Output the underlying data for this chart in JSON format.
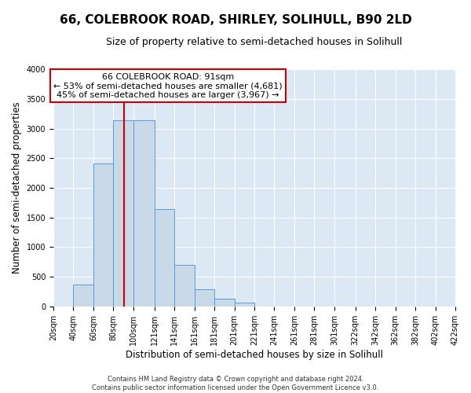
{
  "title": "66, COLEBROOK ROAD, SHIRLEY, SOLIHULL, B90 2LD",
  "subtitle": "Size of property relative to semi-detached houses in Solihull",
  "xlabel": "Distribution of semi-detached houses by size in Solihull",
  "ylabel": "Number of semi-detached properties",
  "footnote1": "Contains HM Land Registry data © Crown copyright and database right 2024.",
  "footnote2": "Contains public sector information licensed under the Open Government Licence v3.0.",
  "bar_left_edges": [
    20,
    40,
    60,
    80,
    100,
    121,
    141,
    161,
    181,
    201,
    221,
    241,
    261,
    281,
    301,
    322,
    342,
    362,
    382,
    402
  ],
  "bar_widths": [
    20,
    20,
    20,
    20,
    21,
    20,
    20,
    20,
    20,
    20,
    20,
    20,
    20,
    20,
    21,
    20,
    20,
    20,
    20,
    20
  ],
  "bar_heights": [
    0,
    375,
    2415,
    3145,
    3145,
    1640,
    700,
    295,
    130,
    60,
    0,
    0,
    0,
    0,
    0,
    0,
    0,
    0,
    0,
    0
  ],
  "bar_color": "#c9d9e8",
  "bar_edge_color": "#5b9bd5",
  "property_value": 91,
  "vline_color": "#cc0000",
  "annotation_title": "66 COLEBROOK ROAD: 91sqm",
  "annotation_line1": "← 53% of semi-detached houses are smaller (4,681)",
  "annotation_line2": "45% of semi-detached houses are larger (3,967) →",
  "annotation_box_color": "#ffffff",
  "annotation_box_edge_color": "#cc0000",
  "xlim": [
    20,
    422
  ],
  "ylim": [
    0,
    4000
  ],
  "yticks": [
    0,
    500,
    1000,
    1500,
    2000,
    2500,
    3000,
    3500,
    4000
  ],
  "xtick_labels": [
    "20sqm",
    "40sqm",
    "60sqm",
    "80sqm",
    "100sqm",
    "121sqm",
    "141sqm",
    "161sqm",
    "181sqm",
    "201sqm",
    "221sqm",
    "241sqm",
    "261sqm",
    "281sqm",
    "301sqm",
    "322sqm",
    "342sqm",
    "362sqm",
    "382sqm",
    "402sqm",
    "422sqm"
  ],
  "xtick_positions": [
    20,
    40,
    60,
    80,
    100,
    121,
    141,
    161,
    181,
    201,
    221,
    241,
    261,
    281,
    301,
    322,
    342,
    362,
    382,
    402,
    422
  ],
  "plot_bg_color": "#dce9f5",
  "title_fontsize": 11,
  "subtitle_fontsize": 9,
  "axis_label_fontsize": 8.5,
  "tick_fontsize": 7,
  "annotation_fontsize": 8
}
